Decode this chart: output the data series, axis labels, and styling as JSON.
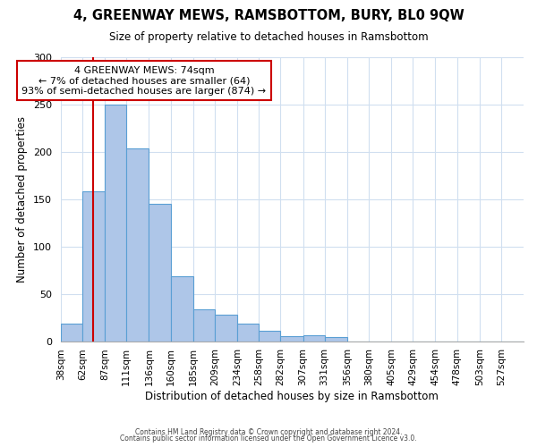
{
  "title": "4, GREENWAY MEWS, RAMSBOTTOM, BURY, BL0 9QW",
  "subtitle": "Size of property relative to detached houses in Ramsbottom",
  "xlabel": "Distribution of detached houses by size in Ramsbottom",
  "ylabel": "Number of detached properties",
  "bin_labels": [
    "38sqm",
    "62sqm",
    "87sqm",
    "111sqm",
    "136sqm",
    "160sqm",
    "185sqm",
    "209sqm",
    "234sqm",
    "258sqm",
    "282sqm",
    "307sqm",
    "331sqm",
    "356sqm",
    "380sqm",
    "405sqm",
    "429sqm",
    "454sqm",
    "478sqm",
    "503sqm",
    "527sqm"
  ],
  "bar_values": [
    19,
    158,
    250,
    204,
    145,
    69,
    34,
    28,
    19,
    11,
    5,
    6,
    4,
    0,
    0,
    0,
    0,
    0,
    0,
    0,
    0
  ],
  "bar_color": "#aec6e8",
  "bar_edge_color": "#5a9fd4",
  "ylim": [
    0,
    300
  ],
  "yticks": [
    0,
    50,
    100,
    150,
    200,
    250,
    300
  ],
  "property_line_color": "#cc0000",
  "annotation_title": "4 GREENWAY MEWS: 74sqm",
  "annotation_line1": "← 7% of detached houses are smaller (64)",
  "annotation_line2": "93% of semi-detached houses are larger (874) →",
  "annotation_box_edge_color": "#cc0000",
  "footer_line1": "Contains HM Land Registry data © Crown copyright and database right 2024.",
  "footer_line2": "Contains public sector information licensed under the Open Government Licence v3.0.",
  "bin_edges": [
    38,
    62,
    87,
    111,
    136,
    160,
    185,
    209,
    234,
    258,
    282,
    307,
    331,
    356,
    380,
    405,
    429,
    454,
    478,
    503,
    527
  ],
  "bin_width": 25,
  "grid_color": "#d0dff0",
  "spine_color": "#aaaaaa"
}
